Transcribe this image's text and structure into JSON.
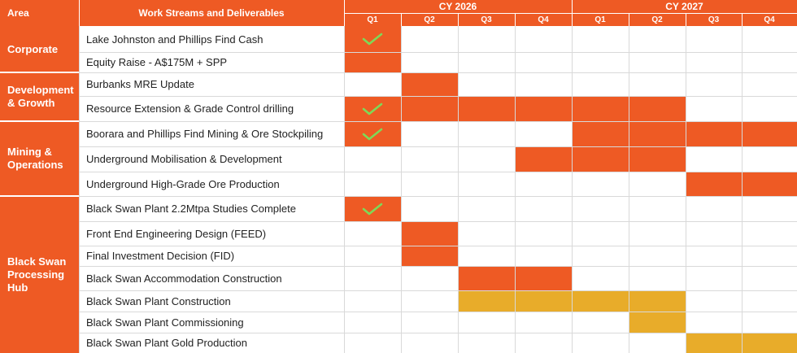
{
  "header": {
    "area_label": "Area",
    "workstreams_label": "Work Streams and Deliverables",
    "years": [
      {
        "label": "CY 2026",
        "quarters": [
          "Q1",
          "Q2",
          "Q3",
          "Q4"
        ]
      },
      {
        "label": "CY 2027",
        "quarters": [
          "Q1",
          "Q2",
          "Q3",
          "Q4"
        ]
      }
    ]
  },
  "colors": {
    "orange": "#ee5a24",
    "gold": "#e8ac2a",
    "check_green": "#7ed957",
    "grid": "#d9d9d9"
  },
  "areas": [
    {
      "label": "Corporate",
      "rows": [
        0,
        1
      ]
    },
    {
      "label": "Development\n& Growth",
      "rows": [
        2,
        3
      ]
    },
    {
      "label": "Mining &\nOperations",
      "rows": [
        4,
        5,
        6
      ]
    },
    {
      "label": "Black Swan\nProcessing\nHub",
      "rows": [
        7,
        8,
        9,
        10,
        11,
        12,
        13
      ]
    }
  ],
  "tasks": [
    {
      "label": "Lake Johnston and Phillips Find Cash",
      "cells": [
        "orange",
        "",
        "",
        "",
        "",
        "",
        "",
        ""
      ],
      "check_quarter": 0
    },
    {
      "label": "Equity Raise - A$175M + SPP",
      "cells": [
        "orange",
        "",
        "",
        "",
        "",
        "",
        "",
        ""
      ]
    },
    {
      "label": "Burbanks MRE Update",
      "cells": [
        "",
        "orange",
        "",
        "",
        "",
        "",
        "",
        ""
      ]
    },
    {
      "label": "Resource Extension & Grade Control drilling",
      "cells": [
        "orange",
        "orange",
        "orange",
        "orange",
        "orange",
        "orange",
        "",
        ""
      ],
      "check_quarter": 0
    },
    {
      "label": "Boorara and Phillips Find Mining & Ore Stockpiling",
      "cells": [
        "orange",
        "",
        "",
        "",
        "orange",
        "orange",
        "orange",
        "orange"
      ],
      "check_quarter": 0
    },
    {
      "label": "Underground Mobilisation & Development",
      "cells": [
        "",
        "",
        "",
        "orange",
        "orange",
        "orange",
        "",
        ""
      ]
    },
    {
      "label": "Underground High-Grade Ore Production",
      "cells": [
        "",
        "",
        "",
        "",
        "",
        "",
        "orange",
        "orange"
      ]
    },
    {
      "label": "Black Swan Plant 2.2Mtpa Studies Complete",
      "cells": [
        "orange",
        "",
        "",
        "",
        "",
        "",
        "",
        ""
      ],
      "check_quarter": 0
    },
    {
      "label": "Front End Engineering Design (FEED)",
      "cells": [
        "",
        "orange",
        "",
        "",
        "",
        "",
        "",
        ""
      ]
    },
    {
      "label": "Final Investment Decision (FID)",
      "cells": [
        "",
        "orange",
        "",
        "",
        "",
        "",
        "",
        ""
      ]
    },
    {
      "label": "Black Swan Accommodation Construction",
      "cells": [
        "",
        "",
        "orange",
        "orange",
        "",
        "",
        "",
        ""
      ]
    },
    {
      "label": "Black Swan Plant Construction",
      "cells": [
        "",
        "",
        "gold",
        "gold",
        "gold",
        "gold",
        "",
        ""
      ]
    },
    {
      "label": "Black Swan Plant Commissioning",
      "cells": [
        "",
        "",
        "",
        "",
        "",
        "gold",
        "",
        ""
      ]
    },
    {
      "label": "Black Swan Plant Gold Production",
      "cells": [
        "",
        "",
        "",
        "",
        "",
        "",
        "gold",
        "gold"
      ]
    }
  ]
}
